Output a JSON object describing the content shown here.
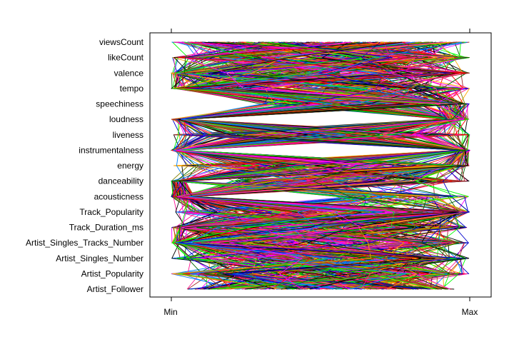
{
  "chart_data": {
    "type": "parallel_coordinates",
    "variables": [
      "Artist_Follower",
      "Artist_Popularity",
      "Artist_Singles_Number",
      "Artist_Singles_Tracks_Number",
      "Track_Duration_ms",
      "Track_Popularity",
      "acousticness",
      "danceability",
      "energy",
      "instrumentalness",
      "liveness",
      "loudness",
      "speechiness",
      "tempo",
      "valence",
      "likeCount",
      "viewsCount"
    ],
    "x_axis": {
      "ticks": [
        "Min",
        "Max"
      ],
      "range": [
        0,
        1
      ]
    },
    "scale": "each variable scaled from Min (0) to Max (1)",
    "palette": [
      "#0080ff",
      "#ff00ff",
      "#006400",
      "#ff0000",
      "#ffa500",
      "#00ff00",
      "#a52a2a",
      "#ff1493",
      "#808000",
      "#0000cd",
      "#000000"
    ],
    "line_count": 300,
    "profile_notes": {
      "acousticness": "mostly near Min, some near Max",
      "danceability": "many near Min edge",
      "instrumentalness": "split between Min and Max",
      "liveness": "bundle toward Max",
      "loudness": "split between Min and Max",
      "likeCount": "spread",
      "viewsCount": "spread"
    }
  }
}
